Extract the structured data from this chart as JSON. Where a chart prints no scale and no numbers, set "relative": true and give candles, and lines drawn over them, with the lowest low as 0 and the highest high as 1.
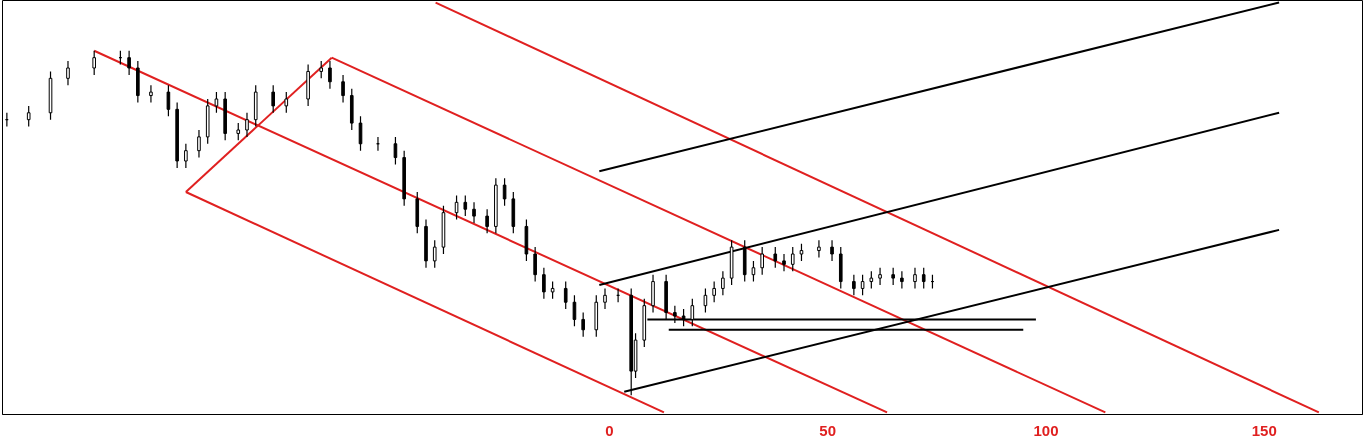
{
  "chart_data": {
    "type": "candlestick",
    "relative": true,
    "color": "#000000",
    "x": [
      -138,
      -133,
      -128,
      -124,
      -118,
      -112,
      -110,
      -108,
      -105,
      -101,
      -99,
      -97,
      -94,
      -92,
      -90,
      -88,
      -85,
      -83,
      -81,
      -77,
      -74,
      -69,
      -66,
      -64,
      -61,
      -59,
      -57,
      -53,
      -49,
      -47,
      -44,
      -42,
      -40,
      -38,
      -35,
      -33,
      -31,
      -28,
      -26,
      -24,
      -22,
      -19,
      -17,
      -15,
      -13,
      -10,
      -8,
      -6,
      -3,
      -1,
      2,
      5,
      6,
      8,
      10,
      13,
      15,
      17,
      19,
      22,
      24,
      26,
      28,
      31,
      33,
      35,
      38,
      40,
      42,
      44,
      48,
      51,
      53,
      56,
      58,
      60,
      62,
      65,
      67,
      70,
      72,
      74
    ],
    "ohlc": [
      [
        0.8,
        0.82,
        0.78,
        0.8
      ],
      [
        0.8,
        0.84,
        0.78,
        0.82
      ],
      [
        0.82,
        0.94,
        0.8,
        0.92
      ],
      [
        0.92,
        0.97,
        0.9,
        0.95
      ],
      [
        0.95,
        1.0,
        0.93,
        0.98
      ],
      [
        0.98,
        1.0,
        0.96,
        0.98
      ],
      [
        0.98,
        1.0,
        0.93,
        0.95
      ],
      [
        0.95,
        0.97,
        0.85,
        0.87
      ],
      [
        0.87,
        0.9,
        0.85,
        0.88
      ],
      [
        0.88,
        0.9,
        0.81,
        0.83
      ],
      [
        0.83,
        0.85,
        0.66,
        0.68
      ],
      [
        0.68,
        0.73,
        0.66,
        0.71
      ],
      [
        0.71,
        0.77,
        0.69,
        0.75
      ],
      [
        0.75,
        0.86,
        0.73,
        0.84
      ],
      [
        0.84,
        0.88,
        0.82,
        0.86
      ],
      [
        0.86,
        0.88,
        0.74,
        0.76
      ],
      [
        0.76,
        0.79,
        0.74,
        0.77
      ],
      [
        0.77,
        0.82,
        0.75,
        0.8
      ],
      [
        0.8,
        0.9,
        0.78,
        0.88
      ],
      [
        0.88,
        0.9,
        0.82,
        0.84
      ],
      [
        0.84,
        0.88,
        0.82,
        0.86
      ],
      [
        0.86,
        0.96,
        0.84,
        0.94
      ],
      [
        0.94,
        0.97,
        0.92,
        0.95
      ],
      [
        0.95,
        0.97,
        0.89,
        0.91
      ],
      [
        0.91,
        0.93,
        0.85,
        0.87
      ],
      [
        0.87,
        0.89,
        0.77,
        0.79
      ],
      [
        0.79,
        0.81,
        0.71,
        0.73
      ],
      [
        0.73,
        0.75,
        0.71,
        0.73
      ],
      [
        0.73,
        0.75,
        0.67,
        0.69
      ],
      [
        0.69,
        0.71,
        0.55,
        0.57
      ],
      [
        0.57,
        0.59,
        0.47,
        0.49
      ],
      [
        0.49,
        0.51,
        0.37,
        0.39
      ],
      [
        0.39,
        0.45,
        0.37,
        0.43
      ],
      [
        0.43,
        0.55,
        0.41,
        0.53
      ],
      [
        0.53,
        0.58,
        0.51,
        0.56
      ],
      [
        0.56,
        0.58,
        0.52,
        0.54
      ],
      [
        0.54,
        0.56,
        0.5,
        0.52
      ],
      [
        0.52,
        0.54,
        0.47,
        0.49
      ],
      [
        0.49,
        0.63,
        0.47,
        0.61
      ],
      [
        0.61,
        0.63,
        0.55,
        0.57
      ],
      [
        0.57,
        0.59,
        0.47,
        0.49
      ],
      [
        0.49,
        0.51,
        0.39,
        0.41
      ],
      [
        0.41,
        0.43,
        0.33,
        0.35
      ],
      [
        0.35,
        0.37,
        0.28,
        0.3
      ],
      [
        0.3,
        0.33,
        0.28,
        0.31
      ],
      [
        0.31,
        0.33,
        0.25,
        0.27
      ],
      [
        0.27,
        0.29,
        0.2,
        0.22
      ],
      [
        0.22,
        0.24,
        0.17,
        0.19
      ],
      [
        0.19,
        0.29,
        0.17,
        0.27
      ],
      [
        0.27,
        0.31,
        0.25,
        0.29
      ],
      [
        0.29,
        0.31,
        0.27,
        0.29
      ],
      [
        0.29,
        0.31,
        0.0,
        0.07
      ],
      [
        0.07,
        0.18,
        0.05,
        0.16
      ],
      [
        0.16,
        0.28,
        0.14,
        0.26
      ],
      [
        0.26,
        0.35,
        0.24,
        0.33
      ],
      [
        0.33,
        0.35,
        0.22,
        0.24
      ],
      [
        0.24,
        0.26,
        0.21,
        0.23
      ],
      [
        0.23,
        0.25,
        0.2,
        0.22
      ],
      [
        0.22,
        0.28,
        0.2,
        0.26
      ],
      [
        0.26,
        0.31,
        0.24,
        0.29
      ],
      [
        0.29,
        0.33,
        0.27,
        0.31
      ],
      [
        0.31,
        0.36,
        0.29,
        0.34
      ],
      [
        0.34,
        0.45,
        0.32,
        0.43
      ],
      [
        0.43,
        0.45,
        0.33,
        0.35
      ],
      [
        0.35,
        0.39,
        0.33,
        0.37
      ],
      [
        0.37,
        0.43,
        0.35,
        0.41
      ],
      [
        0.41,
        0.43,
        0.37,
        0.39
      ],
      [
        0.39,
        0.41,
        0.36,
        0.38
      ],
      [
        0.38,
        0.43,
        0.36,
        0.41
      ],
      [
        0.41,
        0.44,
        0.39,
        0.42
      ],
      [
        0.42,
        0.45,
        0.4,
        0.43
      ],
      [
        0.43,
        0.45,
        0.39,
        0.41
      ],
      [
        0.41,
        0.43,
        0.31,
        0.33
      ],
      [
        0.33,
        0.35,
        0.29,
        0.31
      ],
      [
        0.31,
        0.35,
        0.29,
        0.33
      ],
      [
        0.33,
        0.36,
        0.31,
        0.34
      ],
      [
        0.34,
        0.37,
        0.32,
        0.35
      ],
      [
        0.35,
        0.37,
        0.32,
        0.34
      ],
      [
        0.34,
        0.36,
        0.31,
        0.33
      ],
      [
        0.33,
        0.37,
        0.31,
        0.35
      ],
      [
        0.35,
        0.37,
        0.31,
        0.33
      ],
      [
        0.33,
        0.35,
        0.31,
        0.33
      ]
    ],
    "series": [
      {
        "type": "line",
        "color": "#e02020",
        "x": [
          -97,
          12.5
        ],
        "values": [
          0.59,
          -0.05
        ]
      },
      {
        "type": "line",
        "color": "#e02020",
        "x": [
          -118,
          63.6
        ],
        "values": [
          1.0,
          -0.05
        ]
      },
      {
        "type": "line",
        "color": "#e02020",
        "x": [
          -63.6,
          113.6
        ],
        "values": [
          0.98,
          -0.05
        ]
      },
      {
        "type": "line",
        "color": "#e02020",
        "x": [
          -39.8,
          162.5
        ],
        "values": [
          1.14,
          -0.05
        ]
      },
      {
        "type": "line",
        "color": "#e02020",
        "x": [
          -97,
          -63.6
        ],
        "values": [
          0.59,
          0.98
        ]
      },
      {
        "type": "line",
        "color": "#000000",
        "x": [
          -2.3,
          153.4
        ],
        "values": [
          0.65,
          1.14
        ]
      },
      {
        "type": "line",
        "color": "#000000",
        "x": [
          -2.3,
          153.4
        ],
        "values": [
          0.32,
          0.82
        ]
      },
      {
        "type": "line",
        "color": "#000000",
        "x": [
          3.4,
          153.4
        ],
        "values": [
          0.01,
          0.48
        ]
      },
      {
        "type": "line",
        "color": "#000000",
        "x": [
          8.7,
          97.7
        ],
        "values": [
          0.22,
          0.22
        ]
      },
      {
        "type": "line",
        "color": "#000000",
        "x": [
          13.6,
          94.8
        ],
        "values": [
          0.19,
          0.19
        ]
      }
    ],
    "xlim": [
      -139,
      172.5
    ],
    "xticks": [
      0,
      50,
      100,
      150
    ],
    "tick_labels": "x",
    "grid": false
  }
}
